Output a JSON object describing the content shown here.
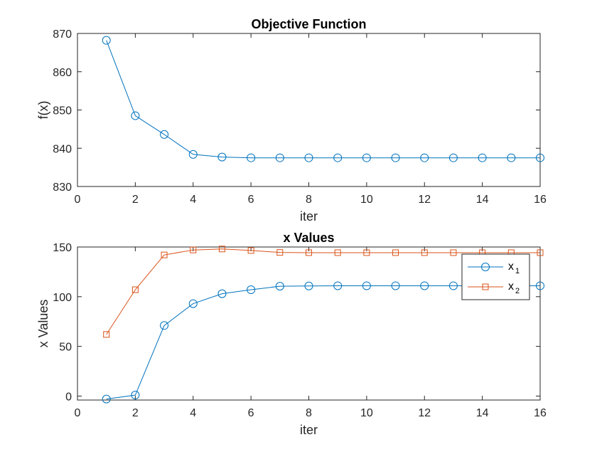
{
  "chart_data": [
    {
      "type": "line",
      "title": "Objective Function",
      "xlabel": "iter",
      "ylabel": "f(x)",
      "xlim": [
        0,
        16
      ],
      "ylim": [
        830,
        870
      ],
      "xticks": [
        "0",
        "2",
        "4",
        "6",
        "8",
        "10",
        "12",
        "14",
        "16"
      ],
      "yticks": [
        "830",
        "840",
        "850",
        "860",
        "870"
      ],
      "grid": false,
      "series": [
        {
          "color": "#0072BD",
          "marker": "circle",
          "x": [
            1,
            2,
            3,
            4,
            5,
            6,
            7,
            8,
            9,
            10,
            11,
            12,
            13,
            14,
            15,
            16
          ],
          "values": [
            868.2,
            848.5,
            843.6,
            838.4,
            837.7,
            837.5,
            837.5,
            837.5,
            837.5,
            837.5,
            837.5,
            837.5,
            837.5,
            837.5,
            837.5,
            837.5
          ]
        }
      ]
    },
    {
      "type": "line",
      "title": "x Values",
      "xlabel": "iter",
      "ylabel": "x Values",
      "xlim": [
        0,
        16
      ],
      "ylim": [
        -4,
        150
      ],
      "xticks": [
        "0",
        "2",
        "4",
        "6",
        "8",
        "10",
        "12",
        "14",
        "16"
      ],
      "yticks": [
        "0",
        "50",
        "100",
        "150"
      ],
      "grid": false,
      "legend": {
        "placement": "top-right"
      },
      "series": [
        {
          "name": "x",
          "name_sub": "1",
          "color": "#0072BD",
          "marker": "circle",
          "x": [
            1,
            2,
            3,
            4,
            5,
            6,
            7,
            8,
            9,
            10,
            11,
            12,
            13,
            14,
            15,
            16
          ],
          "values": [
            -3,
            1,
            71,
            93,
            103,
            107,
            110.5,
            110.8,
            111,
            111,
            111,
            111,
            111,
            111,
            111,
            111
          ]
        },
        {
          "name": "x",
          "name_sub": "2",
          "color": "#D95319",
          "marker": "square",
          "x": [
            1,
            2,
            3,
            4,
            5,
            6,
            7,
            8,
            9,
            10,
            11,
            12,
            13,
            14,
            15,
            16
          ],
          "values": [
            62,
            107,
            142,
            147,
            148,
            146.5,
            144.5,
            144.3,
            144.3,
            144.3,
            144.3,
            144.3,
            144.3,
            144.3,
            144.3,
            144.3
          ]
        }
      ]
    }
  ]
}
